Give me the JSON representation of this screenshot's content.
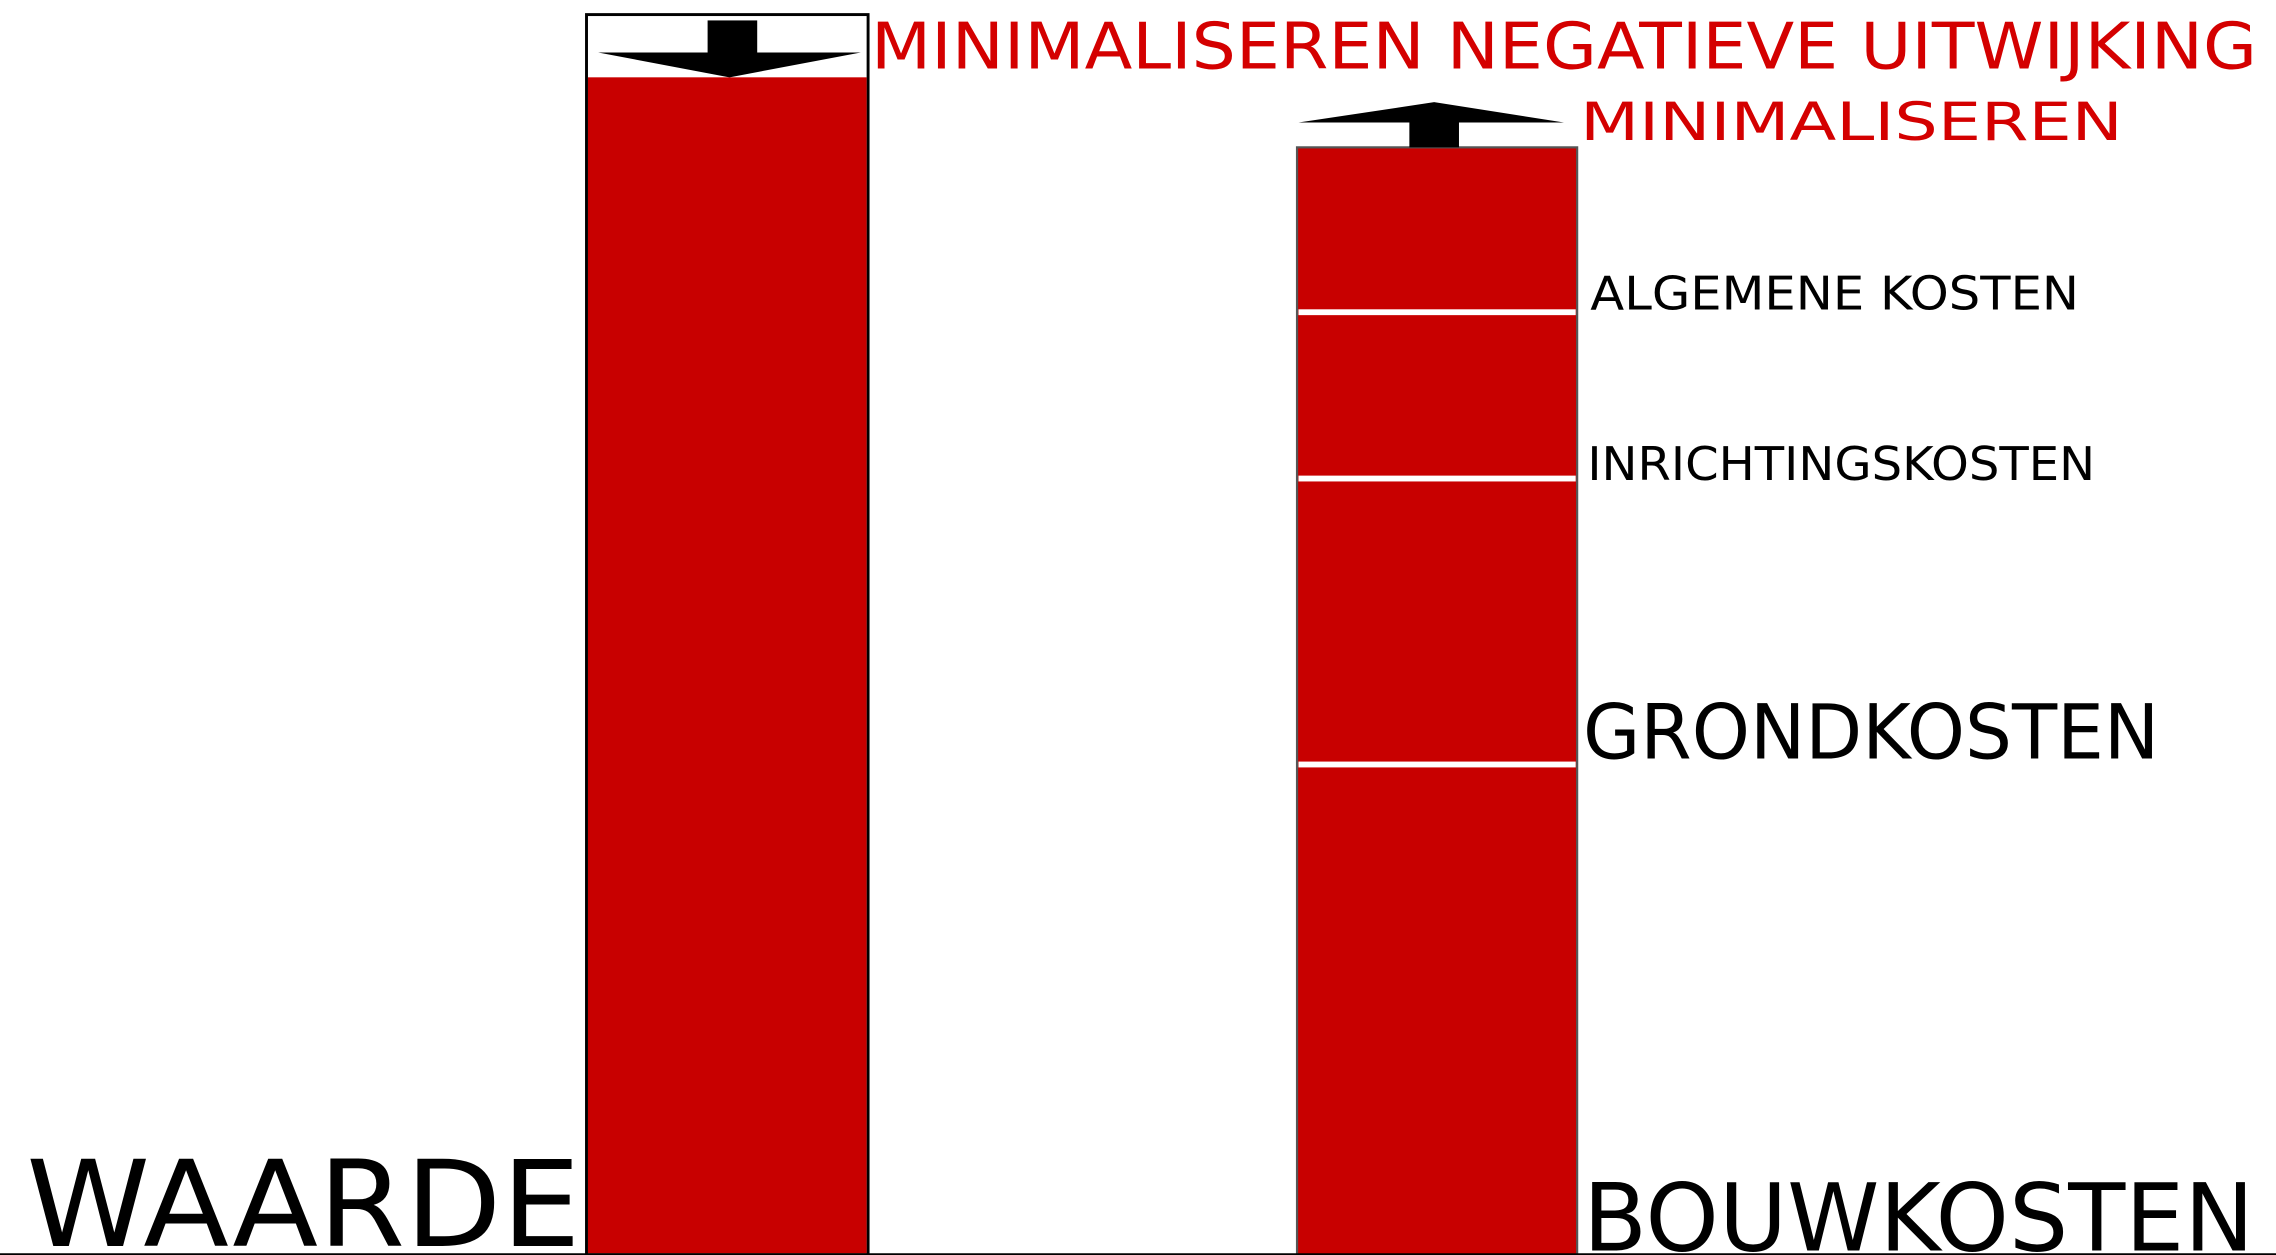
{
  "labels": {
    "left_bar": "WAARDE",
    "left_goal": "MINIMALISEREN NEGATIEVE UITWIJKING",
    "right_goal": "MINIMALISEREN",
    "segments": [
      "ALGEMENE KOSTEN",
      "INRICHTINGSKOSTEN",
      "GRONDKOSTEN",
      "BOUWKOSTEN"
    ]
  }
}
